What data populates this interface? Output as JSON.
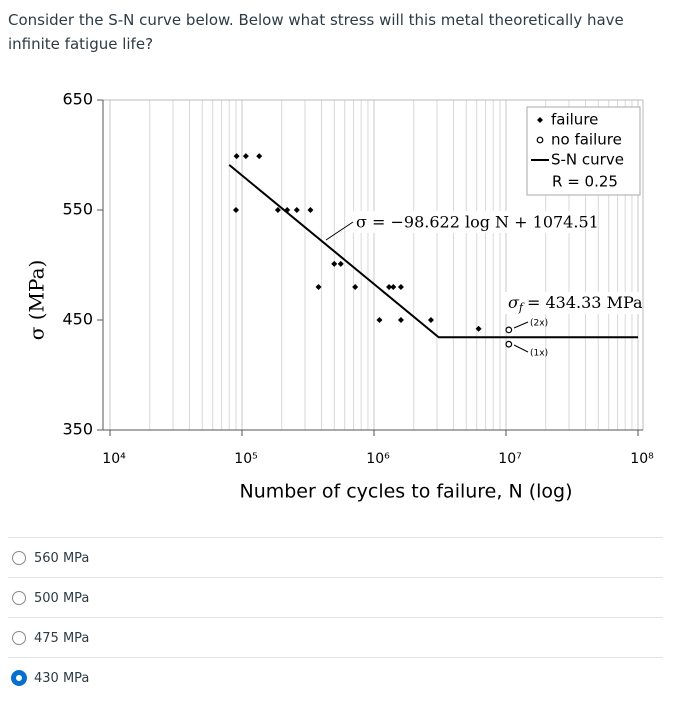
{
  "question": "Consider the S-N curve below. Below what stress will this metal theoretically have infinite fatigue life?",
  "chart_data": {
    "type": "scatter",
    "xlabel": "Number of cycles to failure, N (log)",
    "ylabel": "σ (MPa)",
    "xscale": "log",
    "xlim": [
      10000,
      100000000
    ],
    "ylim": [
      350,
      650
    ],
    "xticks": [
      {
        "value": 10000,
        "label": "10⁴"
      },
      {
        "value": 100000,
        "label": "10⁵"
      },
      {
        "value": 1000000,
        "label": "10⁶"
      },
      {
        "value": 10000000,
        "label": "10⁷"
      },
      {
        "value": 100000000,
        "label": "10⁸"
      }
    ],
    "xminorticks": [
      20000,
      30000,
      40000,
      50000,
      60000,
      70000,
      80000,
      90000,
      200000,
      300000,
      400000,
      500000,
      600000,
      700000,
      800000,
      900000,
      2000000,
      3000000,
      4000000,
      5000000,
      6000000,
      7000000,
      8000000,
      9000000,
      20000000,
      30000000,
      40000000,
      50000000,
      60000000,
      70000000,
      80000000,
      90000000
    ],
    "yticks": [
      350,
      450,
      550,
      650
    ],
    "grid": true,
    "series": [
      {
        "name": "failure",
        "marker": "diamond",
        "color": "#000000",
        "x": [
          91000,
          107000,
          135000,
          90000,
          187000,
          220000,
          260000,
          330000,
          500000,
          560000,
          380000,
          720000,
          1300000,
          1400000,
          1600000,
          1100000,
          1600000,
          2700000,
          6200000
        ],
        "values": [
          599,
          599,
          599,
          550,
          550,
          550,
          550,
          550,
          501,
          501,
          480,
          480,
          480,
          480,
          480,
          450,
          450,
          450,
          442
        ]
      },
      {
        "name": "no failure",
        "marker": "circle",
        "color": "#000000",
        "x": [
          10500000,
          10500000
        ],
        "values": [
          441,
          428
        ]
      },
      {
        "name": "S-N curve",
        "marker": "line",
        "color": "#000000",
        "x": [
          80000,
          3090000,
          100000000
        ],
        "values": [
          591,
          434.33,
          434.33
        ]
      }
    ],
    "legend_note": "R = 0.25",
    "legend": "upper right",
    "annotations": [
      "σ = −98.622 log N + 1074.51",
      "(2x)",
      "(1x)"
    ],
    "fatigue_limit": {
      "symbol": "σ",
      "subscript": "f",
      "text": "= 434.33 MPa"
    }
  },
  "options": [
    "560 MPa",
    "500 MPa",
    "475 MPa",
    "430 MPa"
  ],
  "selected": 3
}
